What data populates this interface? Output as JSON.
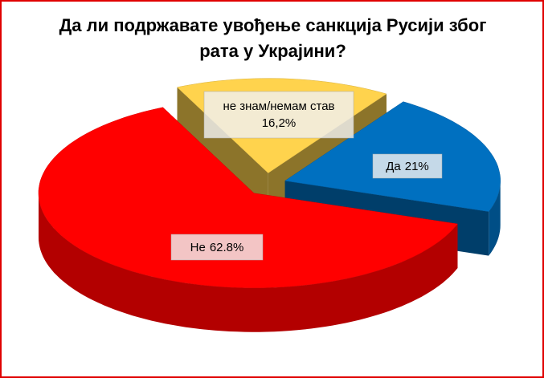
{
  "chart_data": {
    "type": "pie3d",
    "title": "Да ли подржавате увођење санкција Русији због рата у Украјини?",
    "categories": [
      "не знам/немам став",
      "Да",
      "Не"
    ],
    "values": [
      16.2,
      21,
      62.8
    ],
    "value_labels": [
      "16,2%",
      "21%",
      "62.8%"
    ],
    "colors": [
      "#ffd34d",
      "#0070c0",
      "#ff0000"
    ]
  }
}
